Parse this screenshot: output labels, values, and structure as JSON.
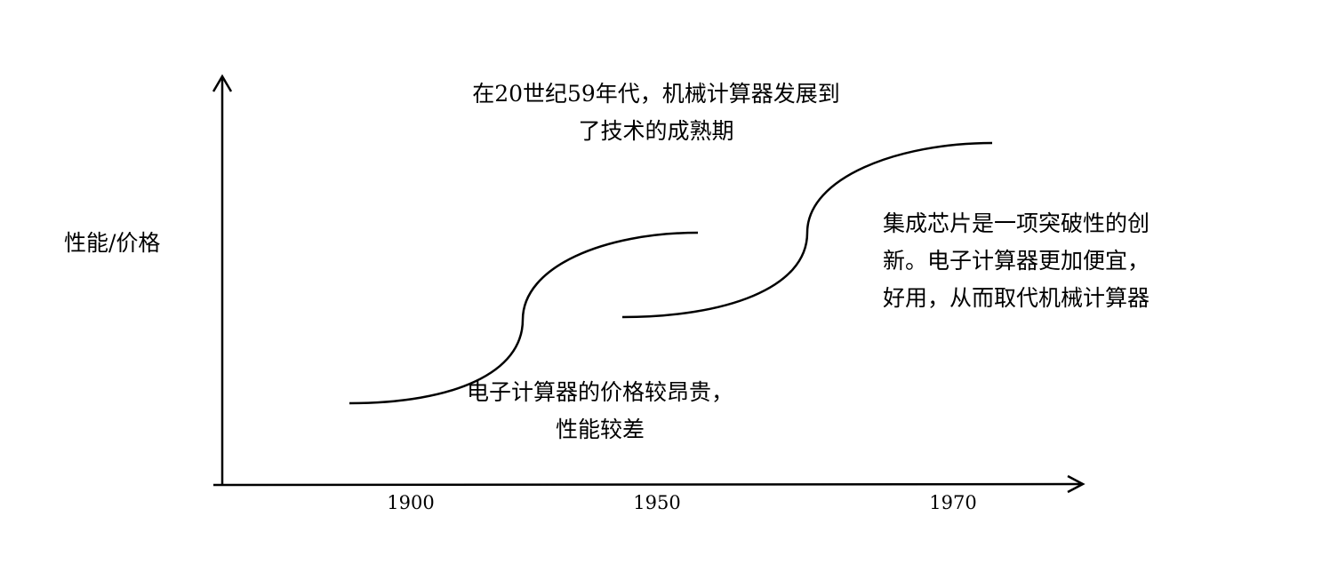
{
  "axes": {
    "y_label": "性能/价格",
    "x_ticks": [
      "1900",
      "1950",
      "1970"
    ]
  },
  "annotations": {
    "mechanical": {
      "line1": "在20世纪59年代，机械计算器发展到",
      "line2": "了技术的成熟期"
    },
    "electronic_early": {
      "line1": "电子计算器的价格较昂贵，",
      "line2": "性能较差"
    },
    "integrated_chip": {
      "line1": "集成芯片是一项突破性的创",
      "line2": "新。电子计算器更加便宜，",
      "line3": "好用，从而取代机械计算器"
    }
  },
  "colors": {
    "stroke": "#000000",
    "background": "#ffffff"
  }
}
